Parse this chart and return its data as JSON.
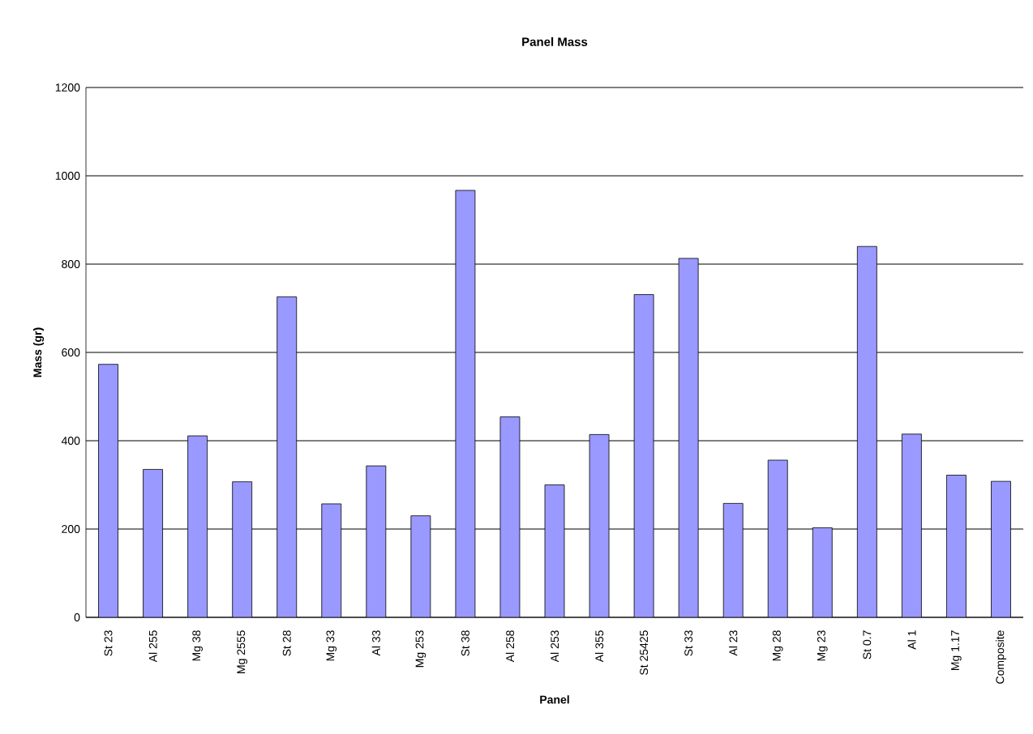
{
  "chart_data": {
    "type": "bar",
    "title": "Panel Mass",
    "xlabel": "Panel",
    "ylabel": "Mass (gr)",
    "categories": [
      "St 23",
      "Al 255",
      "Mg 38",
      "Mg 2555",
      "St 28",
      "Mg 33",
      "Al 33",
      "Mg 253",
      "St 38",
      "Al 258",
      "Al 253",
      "Al 355",
      "St 25425",
      "St 33",
      "Al 23",
      "Mg 28",
      "Mg 23",
      "St 0.7",
      "Al 1",
      "Mg 1.17",
      "Composite"
    ],
    "values": [
      573,
      335,
      411,
      307,
      726,
      257,
      343,
      230,
      967,
      454,
      300,
      414,
      731,
      813,
      258,
      356,
      203,
      840,
      415,
      322,
      308
    ],
    "color": "#9999ff",
    "ylim": [
      0,
      1200
    ],
    "yticks": [
      0,
      200,
      400,
      600,
      800,
      1000,
      1200
    ],
    "grid": "y"
  }
}
